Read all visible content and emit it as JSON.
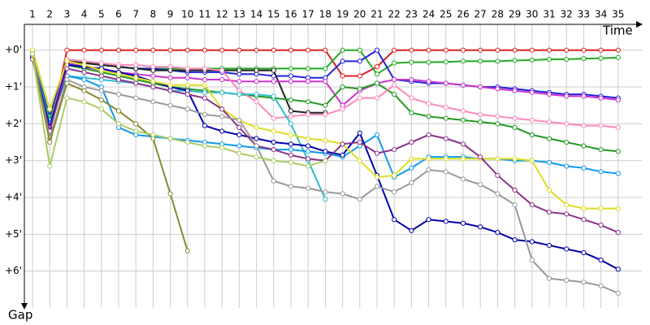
{
  "chart_data": {
    "type": "line",
    "x_label": "Time",
    "y_label": "Gap",
    "categories": [
      "1",
      "2",
      "3",
      "4",
      "5",
      "6",
      "7",
      "8",
      "9",
      "10",
      "11",
      "12",
      "13",
      "14",
      "15",
      "16",
      "17",
      "18",
      "19",
      "20",
      "21",
      "22",
      "23",
      "24",
      "25",
      "26",
      "27",
      "28",
      "29",
      "30",
      "31",
      "32",
      "33",
      "34",
      "35"
    ],
    "ylim": [
      -0.7,
      7
    ],
    "y_inverted": true,
    "grid": true,
    "yticks": [
      {
        "value": 0,
        "label": "+0'"
      },
      {
        "value": 1,
        "label": "+1'"
      },
      {
        "value": 2,
        "label": "+2'"
      },
      {
        "value": 3,
        "label": "+3'"
      },
      {
        "value": 4,
        "label": "+4'"
      },
      {
        "value": 5,
        "label": "+5'"
      },
      {
        "value": 6,
        "label": "+6'"
      }
    ],
    "series": [
      {
        "color": "#e02020",
        "values": [
          0.1,
          2.2,
          0,
          0,
          0,
          0,
          0,
          0,
          0,
          0,
          0,
          0,
          0,
          0,
          0,
          0,
          0,
          0,
          0.7,
          0.7,
          0.45,
          0,
          0,
          0,
          0,
          0,
          0,
          0,
          0,
          0,
          0,
          0,
          0,
          0,
          0
        ]
      },
      {
        "color": "#22aa22",
        "values": [
          0.1,
          2.1,
          0.25,
          0.3,
          0.4,
          0.45,
          0.5,
          0.5,
          0.5,
          0.5,
          0.5,
          0.5,
          0.5,
          0.5,
          0.5,
          0.5,
          0.5,
          0.5,
          0,
          0,
          0.65,
          0.35,
          0.33,
          0.33,
          0.32,
          0.3,
          0.3,
          0.3,
          0.28,
          0.27,
          0.25,
          0.25,
          0.23,
          0.22,
          0.2
        ]
      },
      {
        "color": "#2222dd",
        "values": [
          0.15,
          1.8,
          0.3,
          0.35,
          0.4,
          0.45,
          0.5,
          0.5,
          0.55,
          0.6,
          0.6,
          0.6,
          0.65,
          0.65,
          0.7,
          0.7,
          0.75,
          0.75,
          0.3,
          0.3,
          0,
          0.8,
          0.85,
          0.9,
          0.9,
          0.95,
          1.0,
          1.0,
          1.05,
          1.1,
          1.15,
          1.2,
          1.2,
          1.25,
          1.3
        ]
      },
      {
        "color": "#222222",
        "values": [
          0.1,
          2.0,
          0.3,
          0.35,
          0.4,
          0.45,
          0.5,
          0.55,
          0.55,
          0.55,
          0.55,
          0.55,
          0.55,
          0.55,
          0.55,
          1.65,
          1.7,
          1.7,
          null,
          null,
          null,
          null,
          null,
          null,
          null,
          null,
          null,
          null,
          null,
          null,
          null,
          null,
          null,
          null,
          null
        ]
      },
      {
        "color": "#cc33cc",
        "values": [
          0.2,
          2.0,
          0.35,
          0.45,
          0.55,
          0.6,
          0.65,
          0.7,
          0.75,
          0.75,
          0.8,
          0.8,
          0.85,
          0.85,
          0.85,
          0.85,
          0.85,
          0.85,
          1.5,
          1.1,
          0.9,
          0.8,
          0.8,
          0.85,
          0.9,
          0.95,
          1.0,
          1.05,
          1.1,
          1.15,
          1.2,
          1.25,
          1.25,
          1.3,
          1.35
        ]
      },
      {
        "color": "#229922",
        "values": [
          0.15,
          1.9,
          0.4,
          0.5,
          0.6,
          0.7,
          0.8,
          0.9,
          1.0,
          1.05,
          1.1,
          1.15,
          1.2,
          1.25,
          1.3,
          1.35,
          1.4,
          1.5,
          1.0,
          1.05,
          0.9,
          1.2,
          1.7,
          1.8,
          1.85,
          1.9,
          1.95,
          2.0,
          2.1,
          2.3,
          2.4,
          2.5,
          2.6,
          2.7,
          2.75
        ]
      },
      {
        "color": "#ff88bb",
        "values": [
          0.05,
          2.1,
          0.25,
          0.3,
          0.35,
          0.4,
          0.4,
          0.45,
          0.45,
          0.5,
          0.5,
          0.55,
          1.1,
          1.4,
          1.85,
          1.8,
          1.75,
          1.75,
          1.6,
          1.3,
          1.3,
          0.95,
          1.3,
          1.45,
          1.55,
          1.65,
          1.75,
          1.8,
          1.85,
          1.9,
          1.95,
          2.0,
          2.05,
          2.05,
          2.1
        ]
      },
      {
        "color": "#33bbcc",
        "values": [
          0.2,
          2.0,
          0.7,
          0.75,
          0.8,
          0.85,
          0.9,
          1.0,
          1.1,
          1.1,
          1.15,
          1.15,
          1.2,
          1.2,
          1.25,
          2.0,
          3.0,
          4.05,
          null,
          null,
          null,
          null,
          null,
          null,
          null,
          null,
          null,
          null,
          null,
          null,
          null,
          null,
          null,
          null,
          null
        ]
      },
      {
        "color": "#1199ee",
        "values": [
          0.15,
          2.0,
          0.7,
          0.8,
          1.0,
          2.1,
          2.3,
          2.35,
          2.4,
          2.45,
          2.5,
          2.55,
          2.6,
          2.65,
          2.7,
          2.7,
          2.75,
          2.8,
          2.9,
          2.6,
          2.3,
          3.45,
          3.2,
          2.9,
          2.9,
          2.9,
          2.95,
          2.95,
          3.0,
          3.0,
          3.05,
          3.15,
          3.2,
          3.3,
          3.35
        ]
      },
      {
        "color": "#0000aa",
        "values": [
          0.2,
          2.1,
          0.4,
          0.45,
          0.5,
          0.6,
          0.7,
          0.85,
          1.0,
          1.1,
          2.05,
          2.2,
          2.3,
          2.4,
          2.5,
          2.55,
          2.6,
          2.75,
          2.85,
          2.25,
          3.4,
          4.6,
          4.9,
          4.6,
          4.65,
          4.7,
          4.8,
          4.95,
          5.15,
          5.2,
          5.3,
          5.4,
          5.5,
          5.7,
          5.95
        ]
      },
      {
        "color": "#dddd22",
        "values": [
          0,
          1.6,
          0.3,
          0.4,
          0.55,
          0.65,
          0.75,
          0.85,
          0.95,
          0.95,
          0.95,
          1.6,
          1.9,
          2.1,
          2.2,
          2.3,
          2.4,
          2.45,
          2.55,
          3.0,
          3.45,
          3.4,
          2.95,
          2.95,
          2.95,
          2.95,
          2.95,
          2.95,
          2.95,
          3.0,
          3.8,
          4.2,
          4.3,
          4.3,
          4.3
        ]
      },
      {
        "color": "#883388",
        "values": [
          0.25,
          2.2,
          0.5,
          0.6,
          0.7,
          0.8,
          0.9,
          1.0,
          1.1,
          1.2,
          1.3,
          1.6,
          2.1,
          2.6,
          2.7,
          2.85,
          2.95,
          3.0,
          2.55,
          2.5,
          2.8,
          2.7,
          2.5,
          2.3,
          2.4,
          2.55,
          2.9,
          3.4,
          3.8,
          4.2,
          4.4,
          4.45,
          4.6,
          4.75,
          4.95
        ]
      },
      {
        "color": "#999999",
        "values": [
          0.1,
          2.4,
          0.8,
          1.0,
          1.1,
          1.2,
          1.3,
          1.4,
          1.5,
          1.6,
          1.75,
          1.8,
          1.9,
          2.6,
          3.55,
          3.7,
          3.75,
          3.85,
          3.9,
          4.05,
          3.7,
          3.85,
          3.6,
          3.25,
          3.3,
          3.5,
          3.65,
          3.9,
          4.2,
          5.7,
          6.2,
          6.25,
          6.3,
          6.4,
          6.6
        ]
      },
      {
        "color": "#888833",
        "values": [
          0.1,
          2.5,
          0.9,
          1.1,
          1.35,
          1.65,
          2.0,
          2.4,
          3.9,
          5.45,
          null,
          null,
          null,
          null,
          null,
          null,
          null,
          null,
          null,
          null,
          null,
          null,
          null,
          null,
          null,
          null,
          null,
          null,
          null,
          null,
          null,
          null,
          null,
          null,
          null
        ]
      },
      {
        "color": "#aacc66",
        "values": [
          0.1,
          3.15,
          1.3,
          1.4,
          1.6,
          2.0,
          2.2,
          2.3,
          2.4,
          2.5,
          2.6,
          2.65,
          2.8,
          2.9,
          3.0,
          3.05,
          3.15,
          3.0,
          null,
          null,
          null,
          null,
          null,
          null,
          null,
          null,
          null,
          null,
          null,
          null,
          null,
          null,
          null,
          null,
          null
        ]
      }
    ]
  }
}
